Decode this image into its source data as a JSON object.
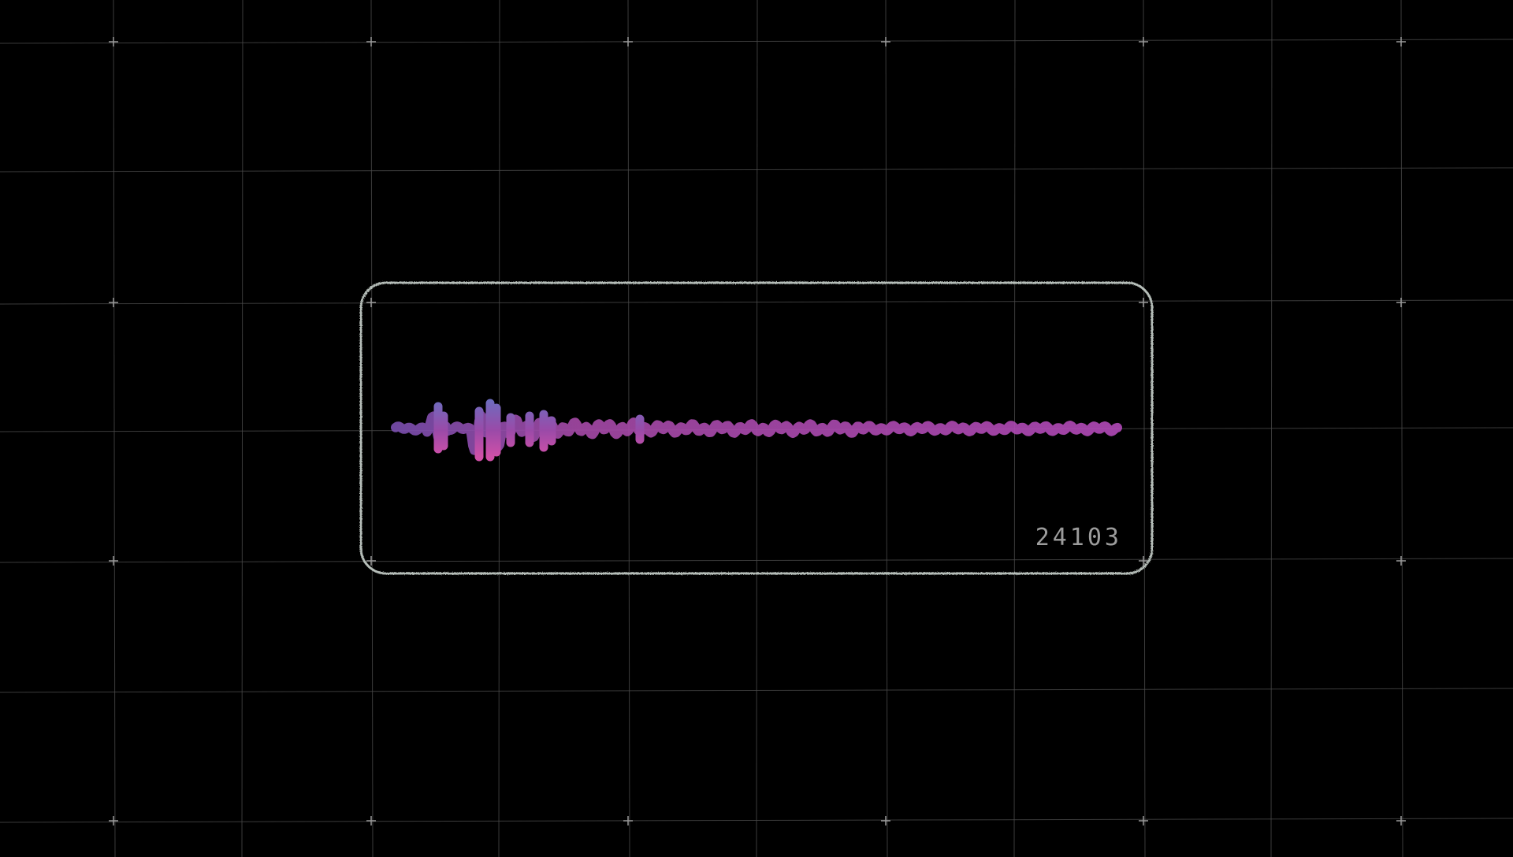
{
  "colors": {
    "background": "#000000",
    "grid_line": "#4a4a4a",
    "grid_marker": "#9a9a9a",
    "panel_border": "#c9d2cc",
    "wave_start": "#7b4fb0",
    "wave_mid": "#a64aa8",
    "wave_end": "#b24ab8",
    "counter_text": "#9c9c9c"
  },
  "waveform_panel": {
    "counter_value": "24103"
  },
  "icons": {
    "grid_marker": "plus-icon"
  }
}
